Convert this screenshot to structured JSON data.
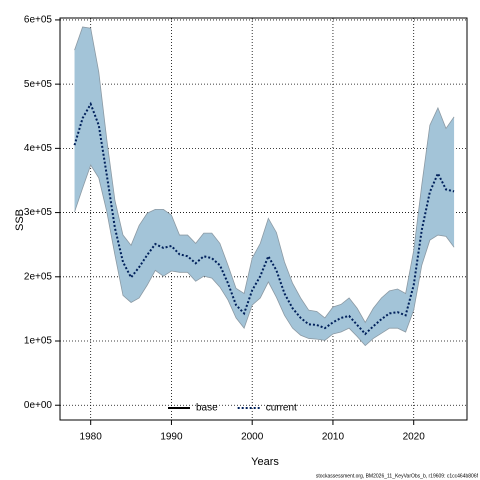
{
  "chart_data": {
    "type": "line",
    "xlabel": "Years",
    "ylabel": "SSB",
    "footer": "stockassessment.org, BM2026_11_KeyVarObs_b, r19609: c1cc464b806f",
    "x": [
      1978,
      1979,
      1980,
      1981,
      1982,
      1983,
      1984,
      1985,
      1986,
      1987,
      1988,
      1989,
      1990,
      1991,
      1992,
      1993,
      1994,
      1995,
      1996,
      1997,
      1998,
      1999,
      2000,
      2001,
      2002,
      2003,
      2004,
      2005,
      2006,
      2007,
      2008,
      2009,
      2010,
      2011,
      2012,
      2013,
      2014,
      2015,
      2016,
      2017,
      2018,
      2019,
      2020,
      2021,
      2022,
      2023,
      2024,
      2025
    ],
    "series": [
      {
        "name": "base",
        "color": "#000000"
      },
      {
        "name": "current",
        "color": "#00205b",
        "band_color": "#a3c4d8",
        "values": [
          405000,
          447000,
          469000,
          436000,
          358000,
          276000,
          223000,
          199000,
          215000,
          234000,
          251000,
          245000,
          248000,
          235000,
          232000,
          221000,
          232000,
          229000,
          218000,
          190000,
          156000,
          143000,
          179000,
          201000,
          232000,
          210000,
          174000,
          151000,
          136000,
          126000,
          125000,
          120000,
          129000,
          136000,
          139000,
          125000,
          111000,
          123000,
          134000,
          143000,
          145000,
          140000,
          187000,
          273000,
          332000,
          361000,
          336000,
          333000
        ],
        "upper": [
          553000,
          589000,
          587000,
          519000,
          413000,
          319000,
          265000,
          249000,
          280000,
          299000,
          305000,
          305000,
          296000,
          265000,
          265000,
          252000,
          268000,
          268000,
          252000,
          218000,
          182000,
          174000,
          229000,
          252000,
          291000,
          269000,
          223000,
          190000,
          167000,
          148000,
          146000,
          136000,
          153000,
          157000,
          167000,
          151000,
          129000,
          151000,
          167000,
          178000,
          181000,
          174000,
          241000,
          343000,
          436000,
          463000,
          431000,
          449000
        ],
        "lower": [
          301000,
          338000,
          374000,
          354000,
          301000,
          234000,
          171000,
          160000,
          167000,
          187000,
          210000,
          201000,
          209000,
          207000,
          207000,
          193000,
          201000,
          198000,
          184000,
          164000,
          136000,
          120000,
          156000,
          167000,
          192000,
          168000,
          140000,
          120000,
          109000,
          104000,
          103000,
          101000,
          111000,
          114000,
          120000,
          107000,
          93000,
          104000,
          112000,
          120000,
          120000,
          114000,
          148000,
          218000,
          257000,
          265000,
          263000,
          246000
        ]
      }
    ],
    "xlim": [
      1976.2,
      2026.6
    ],
    "ylim": [
      -23000,
      603000
    ],
    "xticks": [
      1980,
      1990,
      2000,
      2010,
      2020
    ],
    "yticks": [
      {
        "value": 0,
        "label": "0e+00"
      },
      {
        "value": 100000,
        "label": "1e+05"
      },
      {
        "value": 200000,
        "label": "2e+05"
      },
      {
        "value": 300000,
        "label": "3e+05"
      },
      {
        "value": 400000,
        "label": "4e+05"
      },
      {
        "value": 500000,
        "label": "5e+05"
      },
      {
        "value": 600000,
        "label": "6e+05"
      }
    ],
    "grid": true,
    "legend": "bottom"
  }
}
